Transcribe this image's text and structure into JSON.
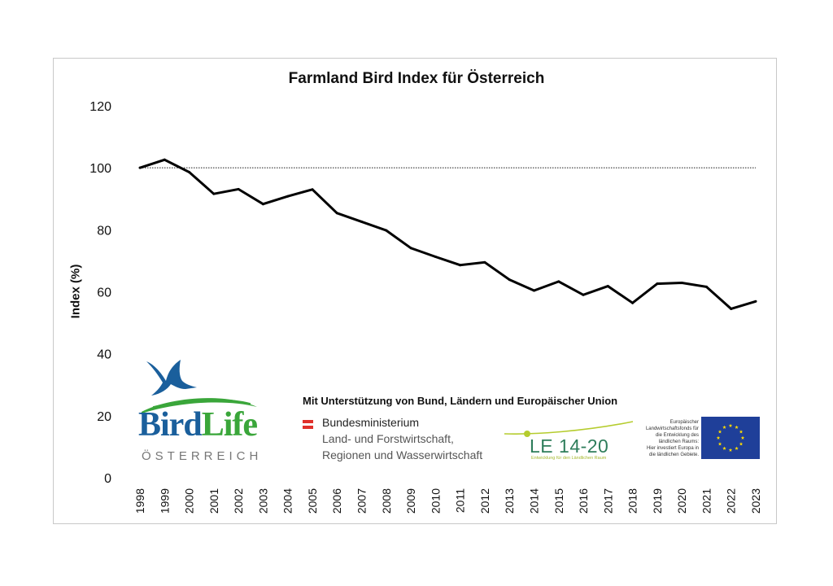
{
  "chart_data": {
    "type": "line",
    "title": "Farmland Bird Index für Österreich",
    "xlabel": "",
    "ylabel": "Index (%)",
    "ylim": [
      0,
      120
    ],
    "yticks": [
      "0",
      "20",
      "40",
      "60",
      "80",
      "100",
      "120"
    ],
    "reference_line": {
      "value": 100,
      "style": "dotted"
    },
    "grid": false,
    "legend": "none",
    "categories": [
      "1998",
      "1999",
      "2000",
      "2001",
      "2002",
      "2003",
      "2004",
      "2005",
      "2006",
      "2007",
      "2008",
      "2009",
      "2010",
      "2011",
      "2012",
      "2013",
      "2014",
      "2015",
      "2016",
      "2017",
      "2018",
      "2019",
      "2020",
      "2021",
      "2022",
      "2023"
    ],
    "series": [
      {
        "name": "Farmland Bird Index",
        "color": "#000000",
        "values": [
          100,
          102.6,
          98.6,
          91.6,
          93.1,
          88.3,
          90.8,
          93.0,
          85.4,
          82.6,
          79.8,
          74.1,
          71.3,
          68.6,
          69.5,
          63.9,
          60.4,
          63.3,
          59.0,
          61.8,
          56.4,
          62.6,
          62.9,
          61.6,
          54.5,
          56.9
        ]
      }
    ]
  },
  "logos": {
    "birdlife": {
      "word_bird": "Bird",
      "word_life": "Life",
      "subtitle": "ÖSTERREICH"
    },
    "support_text": "Mit Unterstützung von Bund, Ländern und Europäischer Union",
    "ministry": {
      "line1": "Bundesministerium",
      "line2": "Land- und Forstwirtschaft,",
      "line3": "Regionen und Wasserwirtschaft"
    },
    "le": {
      "main": "LE 14-20",
      "sub": "Entwicklung für den Ländlichen Raum"
    },
    "eu": {
      "lines": [
        "Europäischer",
        "Landwirtschaftsfonds für",
        "die Entwicklung des",
        "ländlichen Raums:",
        "Hier investiert Europa in",
        "die ländlichen Gebiete."
      ]
    }
  },
  "colors": {
    "birdlife_blue": "#1a5f9c",
    "birdlife_green": "#3aa63a",
    "le_green": "#2e7d5b",
    "le_lime": "#b5cc2e",
    "eu_blue": "#1f3f99",
    "eu_star": "#ffdd00",
    "austria_red": "#e0302a"
  }
}
